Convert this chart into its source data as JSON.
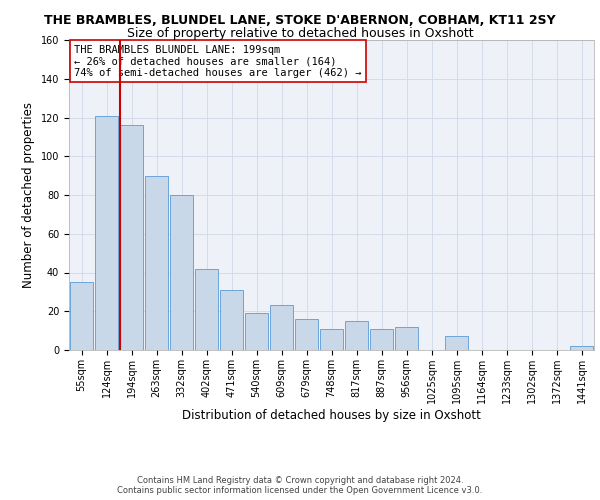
{
  "title": "THE BRAMBLES, BLUNDEL LANE, STOKE D'ABERNON, COBHAM, KT11 2SY",
  "subtitle": "Size of property relative to detached houses in Oxshott",
  "xlabel": "Distribution of detached houses by size in Oxshott",
  "ylabel": "Number of detached properties",
  "categories": [
    "55sqm",
    "124sqm",
    "194sqm",
    "263sqm",
    "332sqm",
    "402sqm",
    "471sqm",
    "540sqm",
    "609sqm",
    "679sqm",
    "748sqm",
    "817sqm",
    "887sqm",
    "956sqm",
    "1025sqm",
    "1095sqm",
    "1164sqm",
    "1233sqm",
    "1302sqm",
    "1372sqm",
    "1441sqm"
  ],
  "values": [
    35,
    121,
    116,
    90,
    80,
    42,
    31,
    19,
    23,
    16,
    11,
    15,
    11,
    12,
    0,
    7,
    0,
    0,
    0,
    0,
    2
  ],
  "bar_color": "#c8d8e8",
  "bar_edge_color": "#5b9bd5",
  "vline_x_index": 2,
  "vline_color": "#cc0000",
  "annotation_text": "THE BRAMBLES BLUNDEL LANE: 199sqm\n← 26% of detached houses are smaller (164)\n74% of semi-detached houses are larger (462) →",
  "annotation_box_color": "#ffffff",
  "annotation_box_edge": "#cc0000",
  "ylim": [
    0,
    160
  ],
  "yticks": [
    0,
    20,
    40,
    60,
    80,
    100,
    120,
    140,
    160
  ],
  "grid_color": "#d0d8e8",
  "background_color": "#eef2f8",
  "footer": "Contains HM Land Registry data © Crown copyright and database right 2024.\nContains public sector information licensed under the Open Government Licence v3.0.",
  "title_fontsize": 9,
  "subtitle_fontsize": 9,
  "xlabel_fontsize": 8.5,
  "ylabel_fontsize": 8.5,
  "tick_fontsize": 7,
  "annotation_fontsize": 7.5,
  "footer_fontsize": 6
}
